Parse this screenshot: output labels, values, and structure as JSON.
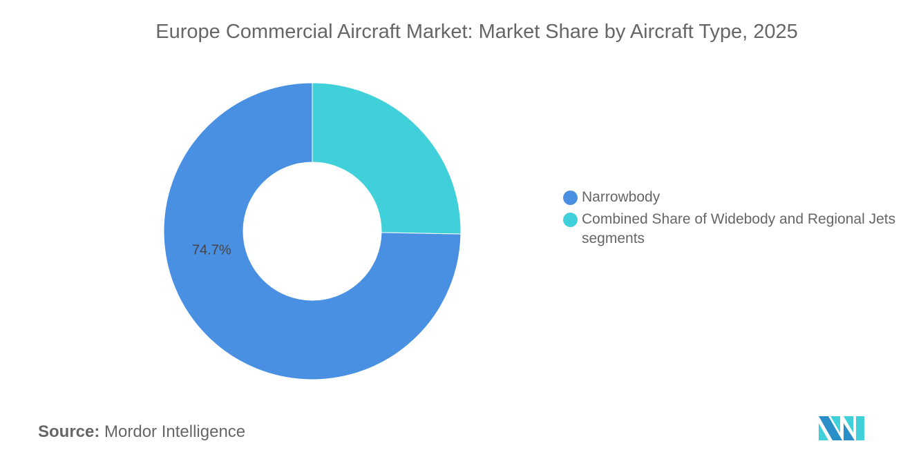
{
  "title": "Europe Commercial Aircraft Market: Market Share by Aircraft Type, 2025",
  "chart_data": {
    "type": "pie",
    "variant": "donut",
    "title": "Europe Commercial Aircraft Market: Market Share by Aircraft Type, 2025",
    "categories": [
      "Narrowbody",
      "Combined Share of Widebody and Regional Jets segments"
    ],
    "values": [
      74.7,
      25.3
    ],
    "unit": "%",
    "data_labels": [
      "74.7%",
      ""
    ],
    "colors": [
      "#4a90e2",
      "#40d0da"
    ],
    "legend_placement": "right"
  },
  "source": {
    "label": "Source:",
    "value": "Mordor Intelligence"
  },
  "logo": {
    "name": "Mordor Intelligence logo",
    "colors": [
      "#2a8fc9",
      "#40d0da"
    ]
  }
}
